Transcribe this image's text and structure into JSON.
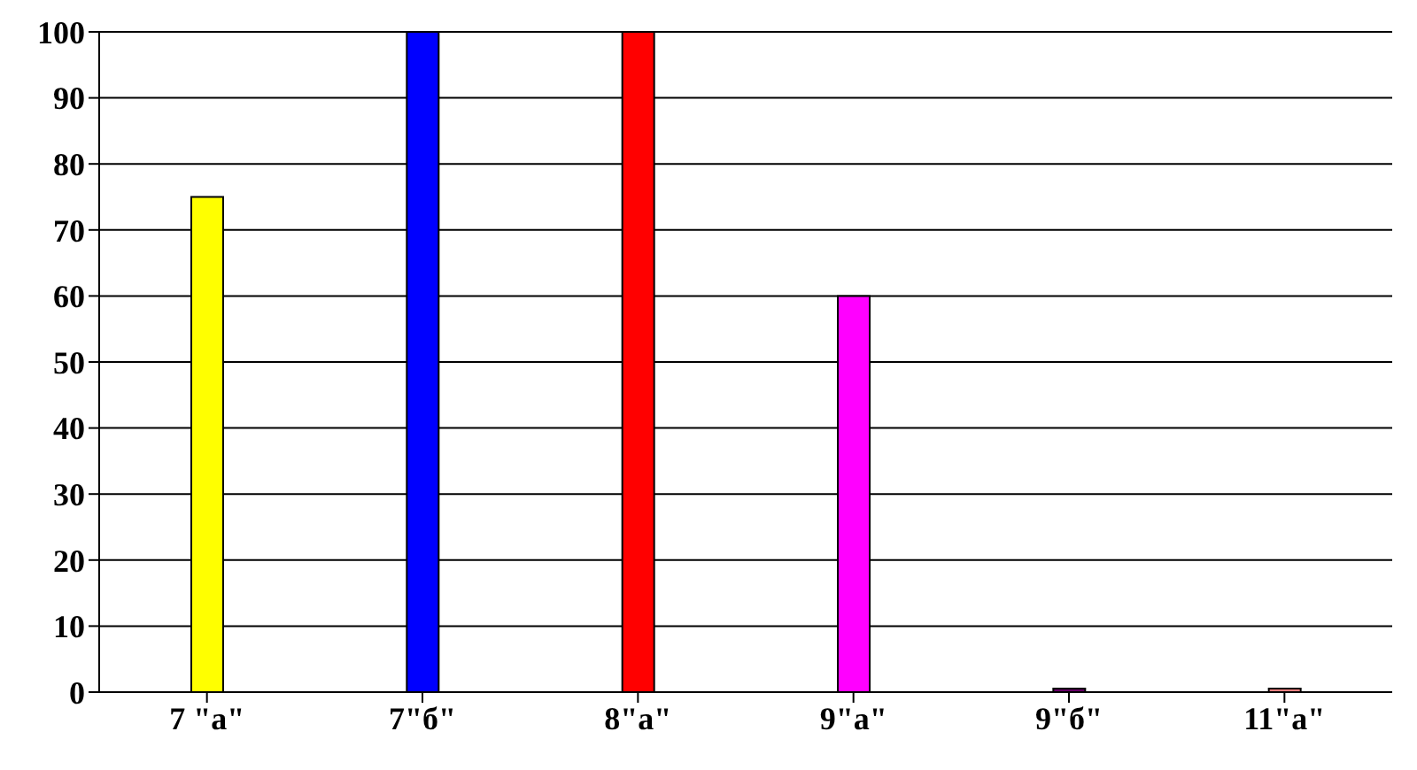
{
  "chart_data": {
    "type": "bar",
    "categories": [
      "7 \"а\"",
      "7\"б\"",
      "8\"а\"",
      "9\"а\"",
      "9\"б\"",
      "11\"а\""
    ],
    "values": [
      75,
      100,
      100,
      60,
      0,
      0
    ],
    "colors": [
      "#ffff00",
      "#0000ff",
      "#ff0000",
      "#ff00ff",
      "#660066",
      "#ff8080"
    ],
    "ylim": [
      0,
      100
    ],
    "yticks": [
      0,
      10,
      20,
      30,
      40,
      50,
      60,
      70,
      80,
      90,
      100
    ],
    "grid": "y",
    "legend": false
  }
}
